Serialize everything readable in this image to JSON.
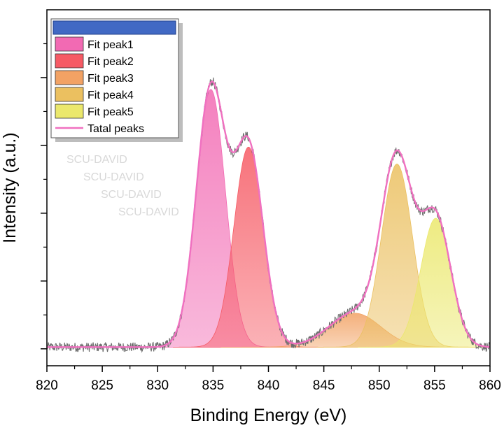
{
  "chart_data": {
    "type": "line",
    "title": "",
    "xlabel": "Binding Energy (eV)",
    "ylabel": "Intensity (a.u.)",
    "xlim": [
      820,
      860
    ],
    "ylim": [
      -5,
      100
    ],
    "x_ticks": [
      820,
      825,
      830,
      835,
      840,
      845,
      850,
      855,
      860
    ],
    "y_ticks_unlabeled": [
      0,
      20,
      40,
      60,
      80
    ],
    "baseline": 0.5,
    "noise_amplitude": 1.4,
    "legend_position": "top-left",
    "legend_header_color": "#4169c4",
    "watermark": [
      "SCU-DAVID",
      "SCU-DAVID",
      "SCU-DAVID",
      "SCU-DAVID"
    ],
    "series": [
      {
        "name": "Fit peak1",
        "center": 834.8,
        "height": 76,
        "fwhm": 3.1,
        "color": "#f26ab3"
      },
      {
        "name": "Fit peak2",
        "center": 838.2,
        "height": 59,
        "fwhm": 3.1,
        "color": "#f65a64"
      },
      {
        "name": "Fit peak3",
        "center": 847.8,
        "height": 10,
        "fwhm": 5.5,
        "color": "#f2a264"
      },
      {
        "name": "Fit peak4",
        "center": 851.6,
        "height": 54,
        "fwhm": 3.3,
        "color": "#ebc060"
      },
      {
        "name": "Fit peak5",
        "center": 855.1,
        "height": 38,
        "fwhm": 3.2,
        "color": "#ebe86c"
      },
      {
        "name": "Tatal peaks",
        "color": "#f070c0",
        "kind": "envelope"
      }
    ],
    "raw_data_color": "#6e6e6e"
  }
}
